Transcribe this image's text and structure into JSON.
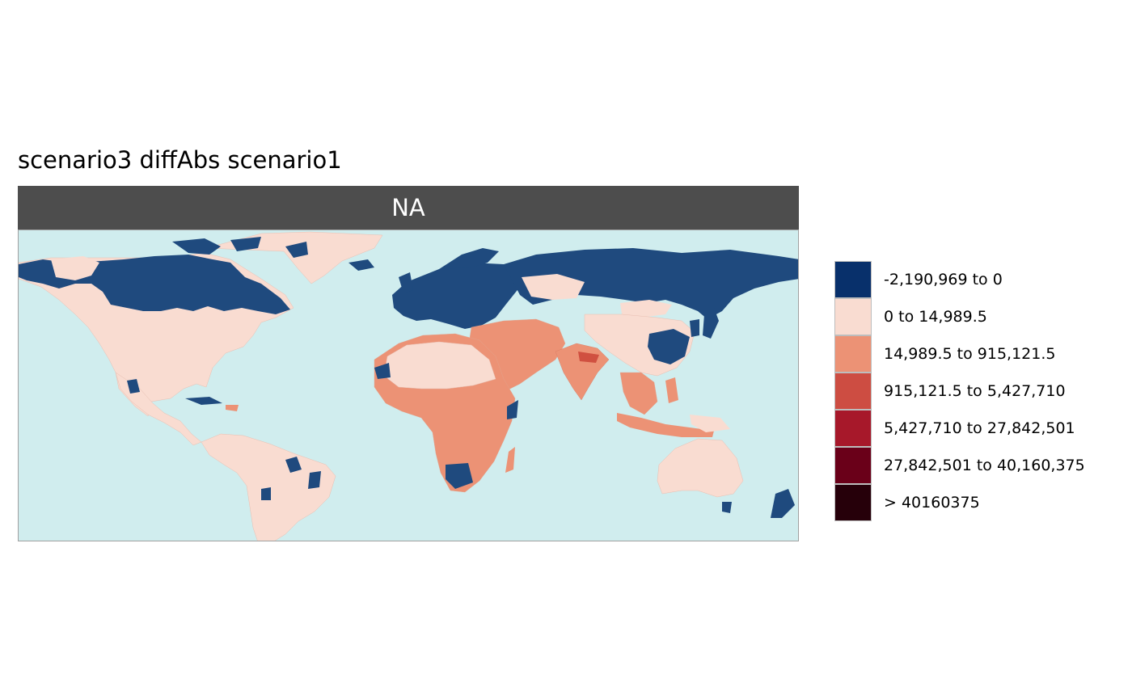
{
  "title": "scenario3 diffAbs scenario1",
  "panel": {
    "strip_label": "NA"
  },
  "map": {
    "ocean_color": "#d0edee",
    "land_base_color": "#f9dcd1",
    "decrease_color": "#1f4a7e",
    "mid_color": "#ec9275",
    "high_color": "#d05040",
    "regions": [
      {
        "name": "north-america",
        "class": "0 to 14,989.5"
      },
      {
        "name": "canada-north",
        "class": "-2,190,969 to 0"
      },
      {
        "name": "greenland",
        "class": "0 to 14,989.5"
      },
      {
        "name": "south-america",
        "class": "0 to 14,989.5"
      },
      {
        "name": "europe",
        "class": "-2,190,969 to 0"
      },
      {
        "name": "russia",
        "class": "-2,190,969 to 0"
      },
      {
        "name": "africa",
        "class": "14,989.5 to 915,121.5"
      },
      {
        "name": "sahara",
        "class": "0 to 14,989.5"
      },
      {
        "name": "middle-east",
        "class": "14,989.5 to 915,121.5"
      },
      {
        "name": "india",
        "class": "14,989.5 to 915,121.5"
      },
      {
        "name": "china",
        "class": "0 to 14,989.5"
      },
      {
        "name": "southeast-asia",
        "class": "14,989.5 to 915,121.5"
      },
      {
        "name": "australia",
        "class": "0 to 14,989.5"
      }
    ]
  },
  "legend": {
    "items": [
      {
        "label": "-2,190,969 to 0",
        "color": "#08306b"
      },
      {
        "label": "0 to 14,989.5",
        "color": "#f9dcd1"
      },
      {
        "label": "14,989.5 to 915,121.5",
        "color": "#ec9275"
      },
      {
        "label": "915,121.5 to 5,427,710",
        "color": "#cd4d42"
      },
      {
        "label": "5,427,710 to 27,842,501",
        "color": "#a7182a"
      },
      {
        "label": "27,842,501 to 40,160,375",
        "color": "#6a0019"
      },
      {
        "label": "> 40160375",
        "color": "#26000a"
      }
    ]
  }
}
